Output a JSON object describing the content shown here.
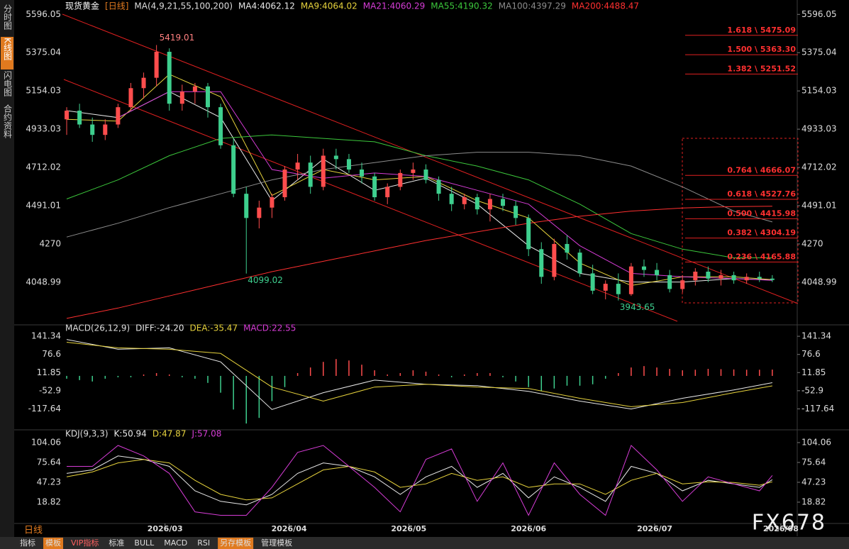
{
  "ui": {
    "tabs": [
      "分时图",
      "K线图",
      "闪电图",
      "合约资料"
    ],
    "period_tab": "日线",
    "toolbar": [
      "指标",
      "模板",
      "VIP指标",
      "标准",
      "BULL",
      "MACD",
      "RSI",
      "另存模板",
      "管理模板"
    ],
    "watermark": "FX678"
  },
  "chart_data": [
    {
      "type": "candlestick",
      "title": "现货黄金",
      "period": "[日线]",
      "indicator": "MA(4,9,21,55,100,200)",
      "up_color": "#ff4d4d",
      "down_color": "#3ecf8e",
      "xlim": [
        -1,
        170
      ],
      "ylim": [
        3815,
        5630
      ],
      "yticks": [
        4048.99,
        4270.0,
        4491.01,
        4712.02,
        4933.03,
        5154.03,
        5375.04,
        5596.05
      ],
      "x": [
        0,
        3,
        6,
        9,
        12,
        15,
        18,
        21,
        24,
        27,
        30,
        33,
        36,
        39,
        42,
        45,
        48,
        51,
        54,
        57,
        60,
        63,
        66,
        69,
        72,
        75,
        78,
        81,
        84,
        87,
        90,
        93,
        96,
        99,
        102,
        105,
        108,
        111,
        114,
        117,
        120,
        123,
        126,
        129,
        132,
        135,
        138,
        141,
        144,
        147,
        150,
        153,
        156,
        159,
        162,
        165
      ],
      "ohlc": [
        [
          4990,
          5060,
          4900,
          5040
        ],
        [
          5040,
          5080,
          4940,
          4960
        ],
        [
          4960,
          5000,
          4860,
          4900
        ],
        [
          4900,
          4990,
          4870,
          4960
        ],
        [
          4960,
          5080,
          4940,
          5060
        ],
        [
          5060,
          5200,
          5040,
          5170
        ],
        [
          5170,
          5260,
          5110,
          5230
        ],
        [
          5230,
          5419.01,
          5180,
          5380
        ],
        [
          5380,
          5400,
          5040,
          5080
        ],
        [
          5080,
          5190,
          5040,
          5150
        ],
        [
          5150,
          5200,
          5080,
          5180
        ],
        [
          5180,
          5200,
          5000,
          5060
        ],
        [
          5060,
          5080,
          4820,
          4840
        ],
        [
          4840,
          4880,
          4540,
          4560
        ],
        [
          4560,
          4600,
          4099.02,
          4420
        ],
        [
          4420,
          4520,
          4360,
          4480
        ],
        [
          4480,
          4560,
          4420,
          4540
        ],
        [
          4540,
          4720,
          4520,
          4700
        ],
        [
          4700,
          4790,
          4640,
          4740
        ],
        [
          4740,
          4780,
          4560,
          4600
        ],
        [
          4600,
          4820,
          4580,
          4780
        ],
        [
          4780,
          4820,
          4700,
          4760
        ],
        [
          4760,
          4790,
          4680,
          4700
        ],
        [
          4700,
          4740,
          4620,
          4660
        ],
        [
          4660,
          4680,
          4520,
          4540
        ],
        [
          4540,
          4620,
          4500,
          4600
        ],
        [
          4600,
          4700,
          4580,
          4680
        ],
        [
          4680,
          4740,
          4640,
          4700
        ],
        [
          4700,
          4730,
          4620,
          4640
        ],
        [
          4640,
          4660,
          4520,
          4560
        ],
        [
          4560,
          4600,
          4460,
          4500
        ],
        [
          4500,
          4560,
          4470,
          4540
        ],
        [
          4540,
          4560,
          4440,
          4470
        ],
        [
          4470,
          4560,
          4400,
          4530
        ],
        [
          4530,
          4560,
          4460,
          4490
        ],
        [
          4490,
          4520,
          4380,
          4420
        ],
        [
          4420,
          4440,
          4200,
          4240
        ],
        [
          4240,
          4280,
          4040,
          4080
        ],
        [
          4080,
          4300,
          4060,
          4270
        ],
        [
          4270,
          4320,
          4180,
          4220
        ],
        [
          4220,
          4240,
          4080,
          4100
        ],
        [
          4100,
          4150,
          3980,
          4000
        ],
        [
          4000,
          4060,
          3950,
          4040
        ],
        [
          4040,
          4100,
          3943.65,
          3980
        ],
        [
          3980,
          4160,
          3970,
          4140
        ],
        [
          4140,
          4180,
          4080,
          4120
        ],
        [
          4120,
          4160,
          4060,
          4090
        ],
        [
          4090,
          4120,
          3990,
          4010
        ],
        [
          4010,
          4090,
          3990,
          4060
        ],
        [
          4060,
          4130,
          4030,
          4110
        ],
        [
          4110,
          4140,
          4050,
          4070
        ],
        [
          4070,
          4120,
          4030,
          4090
        ],
        [
          4090,
          4110,
          4040,
          4060
        ],
        [
          4060,
          4100,
          4040,
          4080
        ],
        [
          4080,
          4110,
          4050,
          4070
        ],
        [
          4070,
          4090,
          4050,
          4062
        ]
      ],
      "series": [
        {
          "name": "MA4:4062.12",
          "color": "#e8e8e8",
          "x": [
            0,
            12,
            24,
            36,
            48,
            60,
            72,
            84,
            96,
            108,
            120,
            132,
            144,
            156,
            165
          ],
          "values": [
            5040,
            5000,
            5150,
            5000,
            4520,
            4760,
            4580,
            4650,
            4500,
            4260,
            4100,
            4050,
            4050,
            4070,
            4062
          ]
        },
        {
          "name": "MA9:4064.02",
          "color": "#e6d23c",
          "x": [
            0,
            12,
            24,
            36,
            48,
            60,
            72,
            84,
            96,
            108,
            120,
            132,
            144,
            156,
            165
          ],
          "values": [
            4990,
            4980,
            5250,
            5120,
            4550,
            4700,
            4640,
            4660,
            4520,
            4420,
            4160,
            4030,
            4080,
            4080,
            4064
          ]
        },
        {
          "name": "MA21:4060.29",
          "color": "#d63cd6",
          "x": [
            0,
            12,
            24,
            36,
            48,
            60,
            72,
            84,
            96,
            108,
            120,
            132,
            144,
            156,
            165
          ],
          "values": [
            null,
            5000,
            5150,
            5150,
            4700,
            4650,
            4680,
            4660,
            4580,
            4500,
            4260,
            4100,
            4080,
            4070,
            4060
          ]
        },
        {
          "name": "MA55:4190.32",
          "color": "#3cc83c",
          "x": [
            0,
            12,
            24,
            36,
            48,
            60,
            72,
            84,
            96,
            108,
            120,
            132,
            144,
            156,
            165
          ],
          "values": [
            4530,
            4640,
            4780,
            4880,
            4900,
            4880,
            4860,
            4780,
            4720,
            4640,
            4500,
            4330,
            4240,
            4190,
            4190
          ]
        },
        {
          "name": "MA100:4397.29",
          "color": "#8c8c8c",
          "x": [
            0,
            12,
            24,
            36,
            48,
            60,
            72,
            84,
            96,
            108,
            120,
            132,
            144,
            156,
            165
          ],
          "values": [
            4310,
            4390,
            4480,
            4560,
            4640,
            4700,
            4740,
            4780,
            4800,
            4800,
            4780,
            4720,
            4600,
            4460,
            4397
          ]
        },
        {
          "name": "MA200:4488.47",
          "color": "#ff3030",
          "x": [
            0,
            12,
            24,
            36,
            48,
            60,
            72,
            84,
            96,
            108,
            120,
            132,
            144,
            156,
            165
          ],
          "values": [
            3840,
            3900,
            3970,
            4040,
            4110,
            4170,
            4230,
            4290,
            4340,
            4390,
            4430,
            4460,
            4478,
            4486,
            4488
          ]
        }
      ],
      "annotations": [
        {
          "x": 21,
          "value": 5419.01,
          "color": "#ff8080"
        },
        {
          "x": 42,
          "value": 4099.02,
          "color": "#3ecf8e"
        },
        {
          "x": 129,
          "value": 3943.65,
          "color": "#3ecf8e"
        }
      ],
      "fib_levels": [
        {
          "value": 5475.09,
          "label": "1.618 \\ 5475.09"
        },
        {
          "value": 5363.3,
          "label": "1.500 \\ 5363.30"
        },
        {
          "value": 5251.52,
          "label": "1.382 \\ 5251.52"
        },
        {
          "value": 4666.07,
          "label": "0.764 \\ 4666.07"
        },
        {
          "value": 4527.76,
          "label": "0.618 \\ 4527.76"
        },
        {
          "value": 4415.98,
          "label": "0.500 \\ 4415.98"
        },
        {
          "value": 4304.19,
          "label": "0.382 \\ 4304.19"
        },
        {
          "value": 4165.88,
          "label": "0.236 \\ 4165.88"
        }
      ]
    },
    {
      "type": "macd",
      "title": "MACD(26,12,9)",
      "xlim": [
        -1,
        170
      ],
      "ylim": [
        -190,
        172
      ],
      "yticks": [
        -117.64,
        -52.9,
        11.85,
        76.6,
        141.34
      ],
      "series": [
        {
          "name": "DIFF:-24.20",
          "color": "#e8e8e8",
          "style": "line",
          "x": [
            0,
            12,
            24,
            36,
            48,
            60,
            72,
            84,
            96,
            108,
            120,
            132,
            144,
            156,
            165
          ],
          "values": [
            130,
            95,
            100,
            50,
            -120,
            -60,
            -15,
            -30,
            -35,
            -55,
            -90,
            -118,
            -80,
            -50,
            -24.2
          ]
        },
        {
          "name": "DEA:-35.47",
          "color": "#e6d23c",
          "style": "line",
          "x": [
            0,
            12,
            24,
            36,
            48,
            60,
            72,
            84,
            96,
            108,
            120,
            132,
            144,
            156,
            165
          ],
          "values": [
            120,
            100,
            95,
            80,
            -40,
            -90,
            -40,
            -30,
            -40,
            -45,
            -80,
            -110,
            -95,
            -60,
            -35.47
          ]
        },
        {
          "name": "MACD:22.55",
          "color": "#d63cd6",
          "style": "bar",
          "up_color": "#ff4d4d",
          "down_color": "#3ecf8e",
          "x": [
            0,
            3,
            6,
            9,
            12,
            15,
            18,
            21,
            24,
            27,
            30,
            33,
            36,
            39,
            42,
            45,
            48,
            51,
            54,
            57,
            60,
            63,
            66,
            69,
            72,
            75,
            78,
            81,
            84,
            87,
            90,
            93,
            96,
            99,
            102,
            105,
            108,
            111,
            114,
            117,
            120,
            123,
            126,
            129,
            132,
            135,
            138,
            141,
            144,
            147,
            150,
            153,
            156,
            159,
            162,
            165
          ],
          "values": [
            -10,
            -15,
            -20,
            -10,
            -5,
            -5,
            5,
            10,
            5,
            -5,
            -10,
            -25,
            -60,
            -120,
            -170,
            -150,
            -90,
            -40,
            10,
            30,
            50,
            60,
            55,
            40,
            20,
            5,
            10,
            20,
            15,
            5,
            -5,
            5,
            10,
            10,
            -5,
            -20,
            -40,
            -55,
            -45,
            -35,
            -35,
            -30,
            -10,
            10,
            30,
            35,
            30,
            25,
            20,
            22,
            25,
            24,
            23,
            22,
            22,
            22.55
          ]
        }
      ]
    },
    {
      "type": "kdj",
      "title": "KDJ(9,3,3)",
      "xlim": [
        -1,
        170
      ],
      "ylim": [
        -8.6,
        116.2
      ],
      "yticks": [
        18.82,
        47.23,
        75.64,
        104.06
      ],
      "xticks": [
        {
          "value": 23,
          "label": "2026/03"
        },
        {
          "value": 52,
          "label": "2026/04"
        },
        {
          "value": 80,
          "label": "2026/05"
        },
        {
          "value": 108,
          "label": "2026/06"
        },
        {
          "value": 137.5,
          "label": "2026/07"
        },
        {
          "value": 167,
          "label": "2026/08"
        }
      ],
      "series": [
        {
          "name": "K:50.94",
          "color": "#e8e8e8",
          "x": [
            0,
            6,
            12,
            18,
            24,
            30,
            36,
            42,
            48,
            54,
            60,
            66,
            72,
            78,
            84,
            90,
            96,
            102,
            108,
            114,
            120,
            126,
            132,
            138,
            144,
            150,
            156,
            162,
            165
          ],
          "values": [
            60,
            65,
            85,
            80,
            70,
            35,
            20,
            15,
            30,
            60,
            75,
            70,
            55,
            30,
            55,
            70,
            40,
            60,
            25,
            55,
            40,
            20,
            70,
            60,
            35,
            50,
            45,
            40,
            50.94
          ]
        },
        {
          "name": "D:47.87",
          "color": "#e6d23c",
          "x": [
            0,
            6,
            12,
            18,
            24,
            30,
            36,
            42,
            48,
            54,
            60,
            66,
            72,
            78,
            84,
            90,
            96,
            102,
            108,
            114,
            120,
            126,
            132,
            138,
            144,
            150,
            156,
            162,
            165
          ],
          "values": [
            55,
            62,
            75,
            80,
            75,
            50,
            30,
            22,
            25,
            45,
            65,
            70,
            62,
            40,
            45,
            60,
            50,
            55,
            40,
            45,
            45,
            30,
            50,
            60,
            45,
            48,
            47,
            43,
            47.87
          ]
        },
        {
          "name": "J:57.08",
          "color": "#d63cd6",
          "x": [
            0,
            6,
            12,
            18,
            24,
            30,
            36,
            42,
            48,
            54,
            60,
            66,
            72,
            78,
            84,
            90,
            96,
            102,
            108,
            114,
            120,
            126,
            132,
            138,
            144,
            150,
            156,
            162,
            165
          ],
          "values": [
            70,
            70,
            100,
            85,
            60,
            5,
            0,
            0,
            40,
            90,
            100,
            70,
            40,
            5,
            80,
            95,
            20,
            75,
            0,
            75,
            30,
            0,
            100,
            65,
            20,
            55,
            45,
            35,
            57.08
          ]
        }
      ]
    }
  ]
}
